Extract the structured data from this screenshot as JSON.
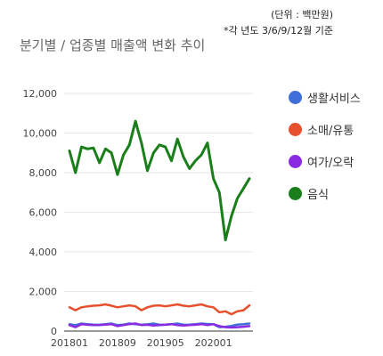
{
  "header": {
    "unit_note": "(단위 : 백만원)",
    "basis_note": "*각 년도 3/6/9/12월 기준",
    "title": "분기별 / 업종별 매출액 변화 추이"
  },
  "chart_data": {
    "type": "line",
    "title": "분기별 / 업종별 매출액 변화 추이",
    "xlabel": "",
    "ylabel": "",
    "ylim": [
      0,
      12000
    ],
    "y_ticks": [
      0,
      2000,
      4000,
      6000,
      8000,
      10000,
      12000
    ],
    "y_tick_labels": [
      "0",
      "2,000",
      "4,000",
      "6,000",
      "8,000",
      "10,000",
      "12,000"
    ],
    "x_tick_labels": [
      {
        "index": 0,
        "label": "201801"
      },
      {
        "index": 8,
        "label": "201809"
      },
      {
        "index": 16,
        "label": "201905"
      },
      {
        "index": 24,
        "label": "202001"
      }
    ],
    "grid": true,
    "legend_position": "right",
    "series": [
      {
        "name": "생활서비스",
        "color": "#3f6fd8",
        "values": [
          350,
          300,
          380,
          350,
          330,
          320,
          350,
          380,
          300,
          330,
          380,
          350,
          320,
          340,
          380,
          320,
          330,
          350,
          380,
          320,
          330,
          350,
          380,
          360,
          350,
          200,
          220,
          260,
          330,
          350,
          380
        ]
      },
      {
        "name": "소매/유통",
        "color": "#e8502d",
        "values": [
          1200,
          1050,
          1200,
          1250,
          1280,
          1300,
          1350,
          1280,
          1200,
          1250,
          1300,
          1250,
          1050,
          1200,
          1280,
          1300,
          1250,
          1300,
          1350,
          1280,
          1250,
          1300,
          1350,
          1250,
          1200,
          950,
          1000,
          850,
          1000,
          1050,
          1300
        ]
      },
      {
        "name": "여가/오락",
        "color": "#8a2be2",
        "values": [
          300,
          200,
          350,
          320,
          300,
          300,
          330,
          350,
          250,
          300,
          350,
          380,
          300,
          320,
          280,
          300,
          320,
          350,
          300,
          280,
          300,
          320,
          350,
          300,
          350,
          250,
          200,
          180,
          200,
          220,
          250
        ]
      },
      {
        "name": "음식",
        "color": "#1a7f1a",
        "values": [
          9100,
          8000,
          9300,
          9200,
          9250,
          8500,
          9200,
          9000,
          7900,
          8900,
          9400,
          10600,
          9500,
          8100,
          9000,
          9400,
          9300,
          8600,
          9700,
          8800,
          8200,
          8600,
          8900,
          9500,
          7700,
          7000,
          4600,
          5800,
          6700,
          7200,
          7700
        ]
      }
    ]
  }
}
